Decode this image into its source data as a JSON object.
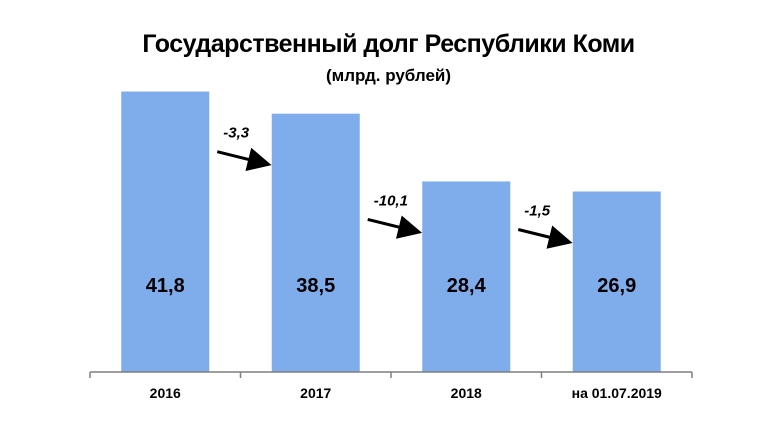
{
  "chart_data": {
    "type": "bar",
    "title": "Государственный долг Республики Коми",
    "subtitle": "(млрд. рублей)",
    "categories": [
      "2016",
      "2017",
      "2018",
      "на 01.07.2019"
    ],
    "values": [
      41.8,
      38.5,
      28.4,
      26.9
    ],
    "value_labels": [
      "41,8",
      "38,5",
      "28,4",
      "26,9"
    ],
    "changes": [
      "-3,3",
      "-10,1",
      "-1,5"
    ],
    "ylim": [
      0,
      46.5
    ],
    "bar_color": "#7facea",
    "axis_color": "#7f7f7f",
    "grid": false,
    "legend": "none"
  }
}
